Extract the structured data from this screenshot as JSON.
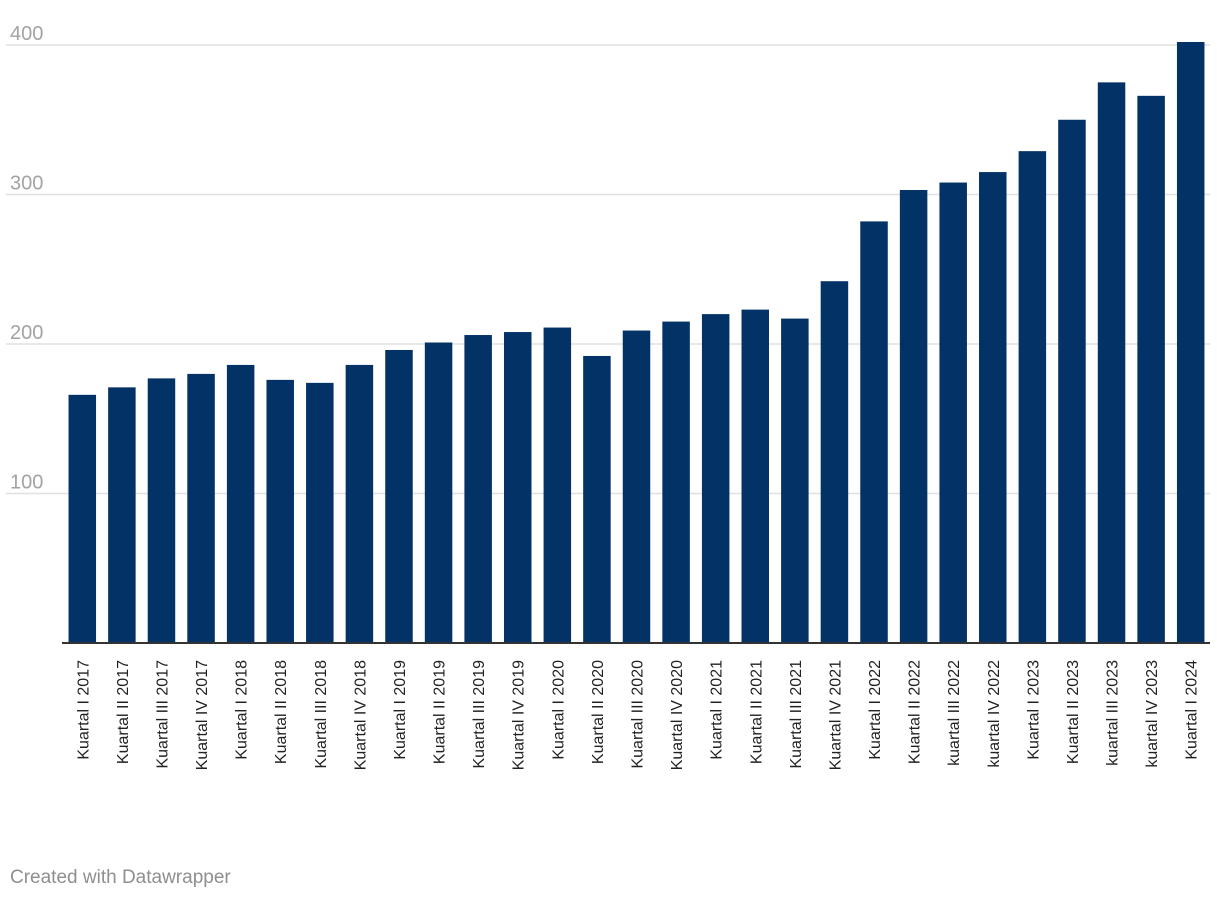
{
  "chart_data": {
    "type": "bar",
    "categories": [
      "Kuartal I 2017",
      "Kuartal II 2017",
      "Kuartal III 2017",
      "Kuartal IV 2017",
      "Kuartal I 2018",
      "Kuartal II 2018",
      "Kuartal III 2018",
      "Kuartal IV 2018",
      "Kuartal I 2019",
      "Kuartal II 2019",
      "Kuartal III 2019",
      "Kuartal IV 2019",
      "Kuartal I 2020",
      "Kuartal II 2020",
      "Kuartal III 2020",
      "Kuartal IV 2020",
      "Kuartal I 2021",
      "Kuartal II 2021",
      "Kuartal III 2021",
      "Kuartal IV 2021",
      "Kuartal I 2022",
      "Kuartal II 2022",
      "kuartal III 2022",
      "kuartal IV 2022",
      "Kuartal I 2023",
      "Kuartal II 2023",
      "kuartal III 2023",
      "kuartal IV 2023",
      "Kuartal I 2024"
    ],
    "values": [
      166,
      171,
      177,
      180,
      186,
      176,
      174,
      186,
      196,
      201,
      206,
      208,
      211,
      192,
      209,
      215,
      220,
      223,
      217,
      242,
      282,
      303,
      308,
      315,
      329,
      350,
      375,
      366,
      402
    ],
    "yticks": [
      "100",
      "200",
      "300",
      "400"
    ],
    "ylim": [
      0,
      402
    ],
    "grid": true,
    "bar_color": "#033266",
    "title": "",
    "xlabel": "",
    "ylabel": ""
  },
  "footer": {
    "credit": "Created with Datawrapper"
  }
}
